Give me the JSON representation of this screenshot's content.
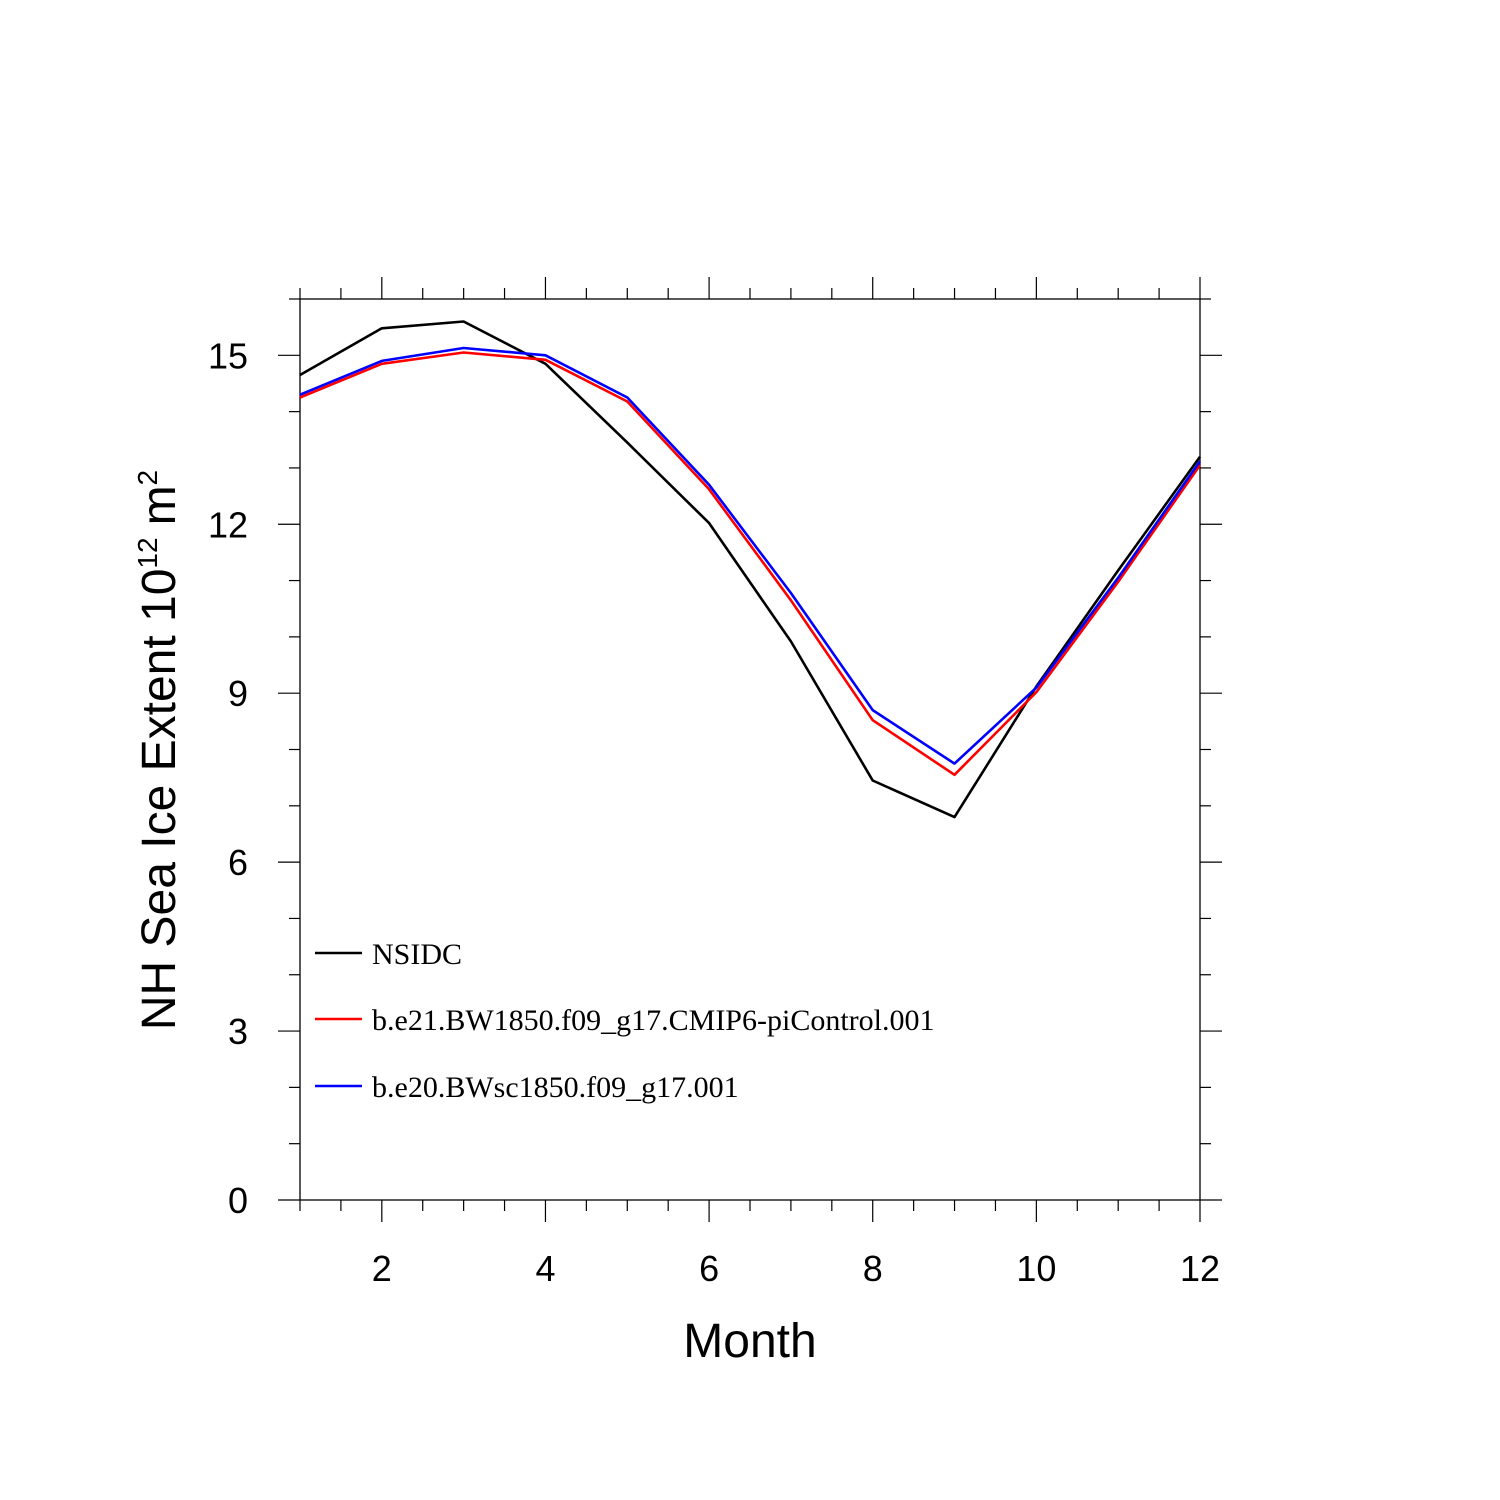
{
  "chart_data": {
    "type": "line",
    "xlabel": "Month",
    "ylabel": "NH Sea Ice Extent 10",
    "ylabel_exponent": "12",
    "ylabel_unit": "m",
    "ylabel_unit_exponent": "2",
    "xlim": [
      1,
      12
    ],
    "ylim": [
      0,
      16
    ],
    "xticks": [
      2,
      4,
      6,
      8,
      10,
      12
    ],
    "yticks": [
      0,
      3,
      6,
      9,
      12,
      15
    ],
    "x": [
      1,
      2,
      3,
      4,
      5,
      6,
      7,
      8,
      9,
      10,
      11,
      12
    ],
    "grid": false,
    "legend_position": "lower-left",
    "series": [
      {
        "name": "NSIDC",
        "color": "#000000",
        "values": [
          14.65,
          15.48,
          15.6,
          14.85,
          13.45,
          12.02,
          9.92,
          7.45,
          6.8,
          9.12,
          11.18,
          13.2
        ]
      },
      {
        "name": "b.e21.BW1850.f09_g17.CMIP6-piControl.001",
        "color": "#ff0000",
        "values": [
          14.25,
          14.85,
          15.05,
          14.92,
          14.18,
          12.62,
          10.65,
          8.52,
          7.55,
          9.02,
          10.98,
          13.05
        ]
      },
      {
        "name": "b.e20.BWsc1850.f09_g17.001",
        "color": "#0000ff",
        "values": [
          14.3,
          14.9,
          15.13,
          15.0,
          14.25,
          12.7,
          10.78,
          8.7,
          7.75,
          9.1,
          11.05,
          13.12
        ]
      }
    ]
  }
}
